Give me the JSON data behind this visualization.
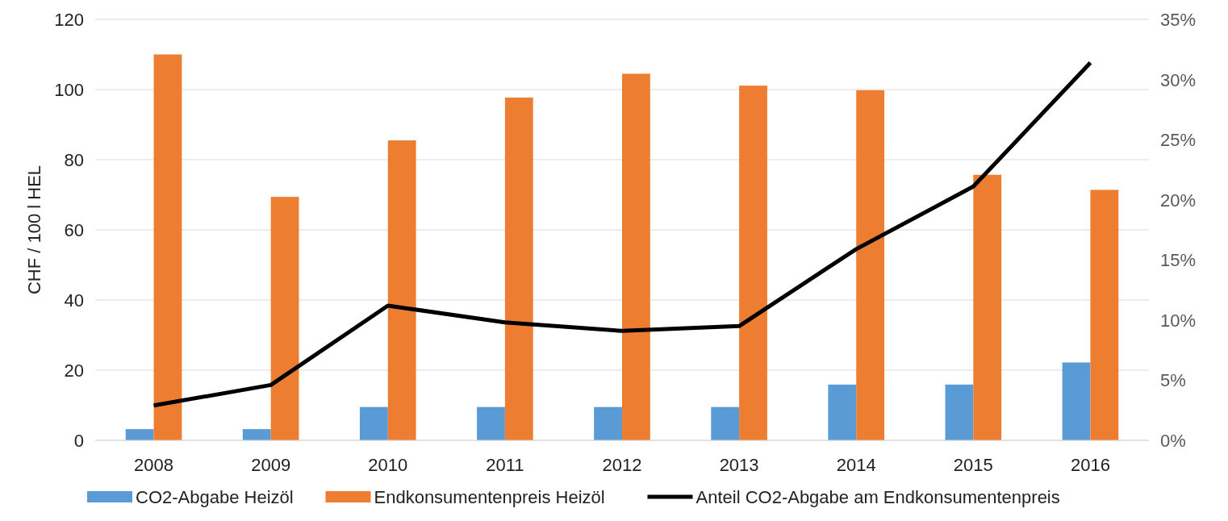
{
  "chart_data": {
    "type": "bar",
    "ylabel": "CHF / 100 l HEL",
    "categories": [
      "2008",
      "2009",
      "2010",
      "2011",
      "2012",
      "2013",
      "2014",
      "2015",
      "2016"
    ],
    "series": [
      {
        "name": "CO2-Abgabe Heizöl",
        "color": "#5b9bd5",
        "values": [
          3.2,
          3.2,
          9.5,
          9.5,
          9.5,
          9.5,
          15.9,
          15.9,
          22.2
        ]
      },
      {
        "name": "Endkonsumentenpreis Heizöl",
        "color": "#ed7d31",
        "values": [
          110,
          69.4,
          85.5,
          97.7,
          104.5,
          101.1,
          99.8,
          75.7,
          71.4
        ]
      },
      {
        "name": "Anteil CO2-Abgabe am Endkonsumentenpreis",
        "type": "line",
        "axis": "y2",
        "color": "#000000",
        "values": [
          2.9,
          4.6,
          11.2,
          9.8,
          9.1,
          9.5,
          15.9,
          21.1,
          31.4
        ]
      }
    ],
    "ylim": [
      0,
      120
    ],
    "yticks": [
      0,
      20,
      40,
      60,
      80,
      100,
      120
    ],
    "y2lim": [
      0,
      35
    ],
    "y2ticks": [
      {
        "value": 0,
        "label": "0%"
      },
      {
        "value": 5,
        "label": "5%"
      },
      {
        "value": 10,
        "label": "10%"
      },
      {
        "value": 15,
        "label": "15%"
      },
      {
        "value": 20,
        "label": "20%"
      },
      {
        "value": 25,
        "label": "25%"
      },
      {
        "value": 30,
        "label": "30%"
      },
      {
        "value": 35,
        "label": "35%"
      }
    ],
    "grid": "y",
    "legend": "bottom",
    "marker": "none",
    "line_style": "solid"
  }
}
